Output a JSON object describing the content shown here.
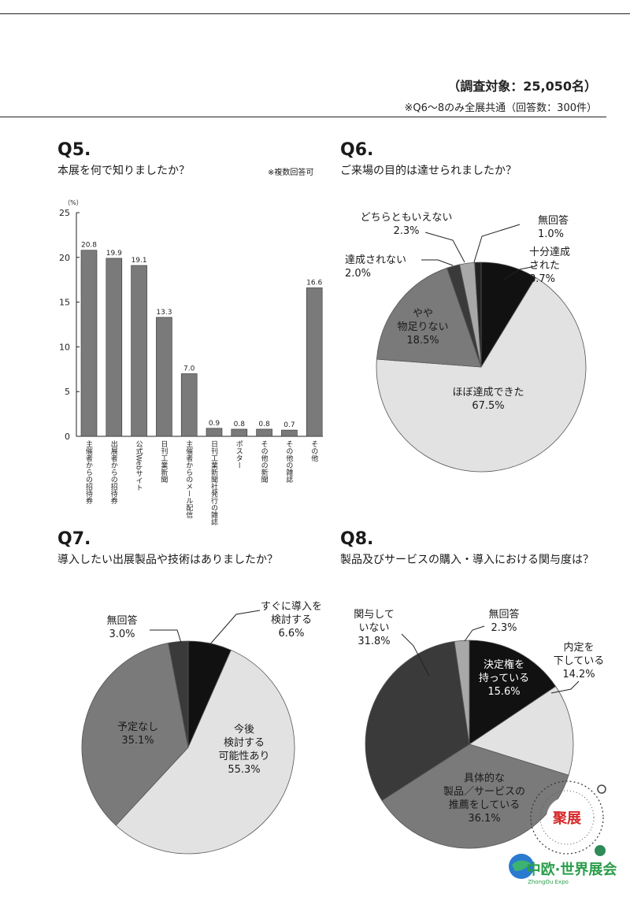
{
  "header": {
    "survey_target": "（調査対象：25,050名）",
    "note": "※Q6〜8のみ全展共通（回答数：300件）"
  },
  "q5": {
    "number": "Q5.",
    "question": "本展を何で知りましたか？",
    "note": "※複数回答可",
    "unit": "（%）"
  },
  "q6": {
    "number": "Q6.",
    "question": "ご来場の目的は達せられましたか？"
  },
  "q7": {
    "number": "Q7.",
    "question": "導入したい出展製品や技術はありましたか？"
  },
  "q8": {
    "number": "Q8.",
    "question": "製品及びサービスの購入・導入における関与度は？"
  },
  "logo": {
    "text_top": "聚展",
    "text_main": "中欧·世界展会",
    "text_sub": "ZhongOu Expo"
  },
  "colors": {
    "black": "#111111",
    "dark": "#3a3a3a",
    "mid": "#7a7a7a",
    "light": "#e2e2e2",
    "bar": "#7a7a7a"
  },
  "chart_data": [
    {
      "type": "bar",
      "title": "本展を何で知りましたか？",
      "ylabel": "（%）",
      "ylim": [
        0,
        25
      ],
      "yticks": [
        0,
        5,
        10,
        15,
        20,
        25
      ],
      "categories": [
        "主催者からの招待券",
        "出展者からの招待券",
        "公式Webサイト",
        "日刊工業新聞",
        "主催者からのメール配信",
        "日刊工業新聞社発行の雑誌",
        "ポスター",
        "その他の新聞",
        "その他の雑誌",
        "その他"
      ],
      "values": [
        20.8,
        19.9,
        19.1,
        13.3,
        7.0,
        0.9,
        0.8,
        0.8,
        0.7,
        16.6
      ],
      "value_labels": [
        "20.8",
        "19.9",
        "19.1",
        "13.3",
        "7.0",
        "0.9",
        "0.8",
        "0.8",
        "0.7",
        "16.6"
      ]
    },
    {
      "type": "pie",
      "title": "ご来場の目的は達せられましたか？",
      "slices": [
        {
          "label": "十分達成された",
          "value": 8.7,
          "display": "8.7%",
          "color": "#111111"
        },
        {
          "label": "ほぼ達成できた",
          "value": 67.5,
          "display": "67.5%",
          "color": "#e2e2e2"
        },
        {
          "label": "やや物足りない",
          "value": 18.5,
          "display": "18.5%",
          "color": "#7a7a7a"
        },
        {
          "label": "達成されない",
          "value": 2.0,
          "display": "2.0%",
          "color": "#3a3a3a"
        },
        {
          "label": "どちらともいえない",
          "value": 2.3,
          "display": "2.3%",
          "color": "#a8a8a8"
        },
        {
          "label": "無回答",
          "value": 1.0,
          "display": "1.0%",
          "color": "#222222"
        }
      ]
    },
    {
      "type": "pie",
      "title": "導入したい出展製品や技術はありましたか？",
      "slices": [
        {
          "label": "すぐに導入を検討する",
          "value": 6.6,
          "display": "6.6%",
          "color": "#111111"
        },
        {
          "label": "今後検討する可能性あり",
          "value": 55.3,
          "display": "55.3%",
          "color": "#e2e2e2"
        },
        {
          "label": "予定なし",
          "value": 35.1,
          "display": "35.1%",
          "color": "#7a7a7a"
        },
        {
          "label": "無回答",
          "value": 3.0,
          "display": "3.0%",
          "color": "#3a3a3a"
        }
      ]
    },
    {
      "type": "pie",
      "title": "製品及びサービスの購入・導入における関与度は？",
      "slices": [
        {
          "label": "決定権を持っている",
          "value": 15.6,
          "display": "15.6%",
          "color": "#111111"
        },
        {
          "label": "内定を下している",
          "value": 14.2,
          "display": "14.2%",
          "color": "#e2e2e2"
        },
        {
          "label": "具体的な製品／サービスの推薦をしている",
          "value": 36.1,
          "display": "36.1%",
          "color": "#7a7a7a"
        },
        {
          "label": "関与していない",
          "value": 31.8,
          "display": "31.8%",
          "color": "#3a3a3a"
        },
        {
          "label": "無回答",
          "value": 2.3,
          "display": "2.3%",
          "color": "#a8a8a8"
        }
      ]
    }
  ],
  "pie_labels": {
    "q6": [
      {
        "name": "十分達成された",
        "text": "十分達成\nされた\n8.7%"
      },
      {
        "name": "ほぼ達成できた",
        "text": "ほぼ達成できた\n67.5%"
      },
      {
        "name": "やや物足りない",
        "text": "やや\n物足りない\n18.5%"
      },
      {
        "name": "達成されない",
        "text": "達成されない\n2.0%"
      },
      {
        "name": "どちらともいえない",
        "text": "どちらともいえない\n2.3%"
      },
      {
        "name": "無回答",
        "text": "無回答\n1.0%"
      }
    ],
    "q7": [
      {
        "name": "すぐに導入を検討する",
        "text": "すぐに導入を\n検討する\n6.6%"
      },
      {
        "name": "今後検討する可能性あり",
        "text": "今後\n検討する\n可能性あり\n55.3%"
      },
      {
        "name": "予定なし",
        "text": "予定なし\n35.1%"
      },
      {
        "name": "無回答",
        "text": "無回答\n3.0%"
      }
    ],
    "q8": [
      {
        "name": "決定権を持っている",
        "text": "決定権を\n持っている\n15.6%"
      },
      {
        "name": "内定を下している",
        "text": "内定を\n下している\n14.2%"
      },
      {
        "name": "具体的な製品サービスの推薦をしている",
        "text": "具体的な\n製品／サービスの\n推薦をしている\n36.1%"
      },
      {
        "name": "関与していない",
        "text": "関与して\nいない\n31.8%"
      },
      {
        "name": "無回答",
        "text": "無回答\n2.3%"
      }
    ]
  }
}
